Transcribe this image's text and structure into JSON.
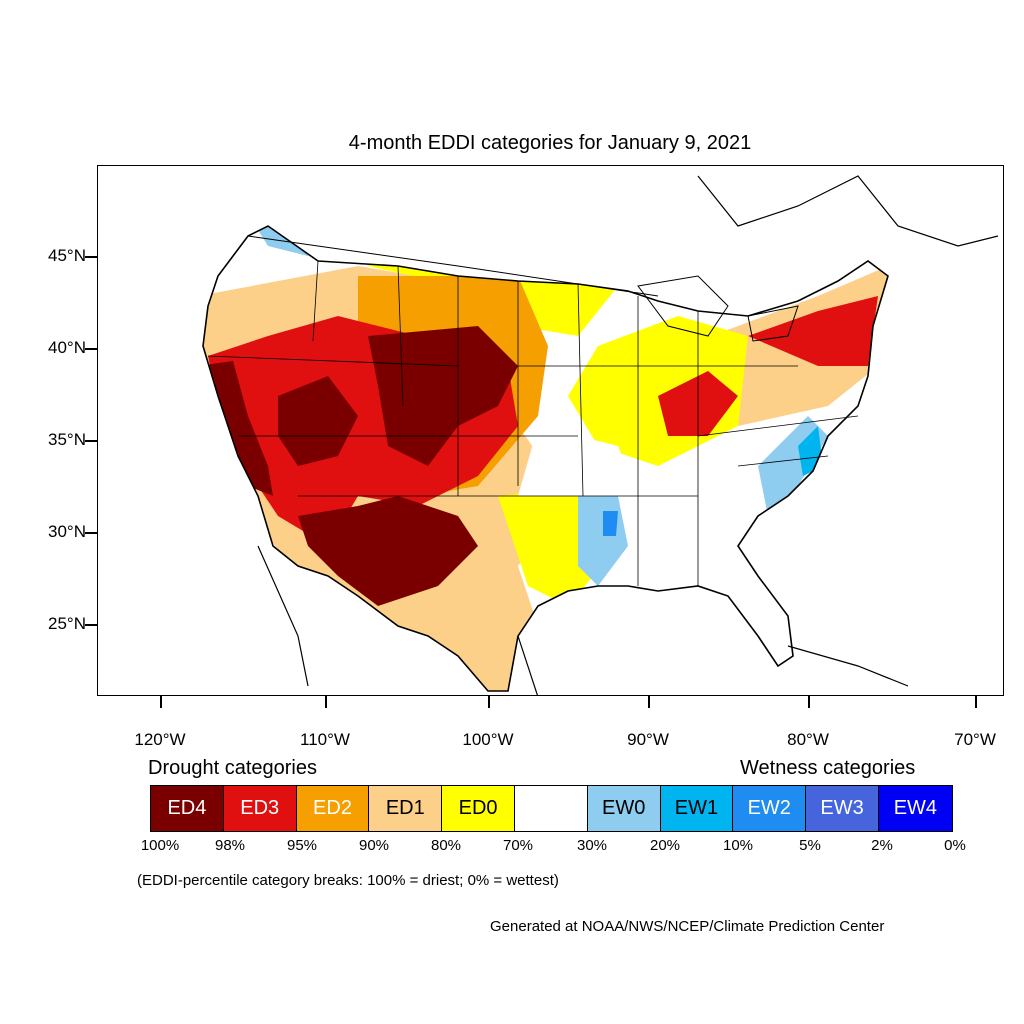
{
  "title": "4-month EDDI categories for January 9, 2021",
  "latitude_labels": [
    "45°N",
    "40°N",
    "35°N",
    "30°N",
    "25°N"
  ],
  "longitude_labels": [
    "120°W",
    "110°W",
    "100°W",
    "90°W",
    "80°W",
    "70°W"
  ],
  "legend": {
    "drought_heading": "Drought categories",
    "wetness_heading": "Wetness categories",
    "categories": [
      {
        "label": "ED4",
        "color": "#7a0000",
        "text_color": "#ffffff"
      },
      {
        "label": "ED3",
        "color": "#e01010",
        "text_color": "#ffffff"
      },
      {
        "label": "ED2",
        "color": "#f5a000",
        "text_color": "#ffffff"
      },
      {
        "label": "ED1",
        "color": "#fdd08a",
        "text_color": "#000000"
      },
      {
        "label": "ED0",
        "color": "#ffff00",
        "text_color": "#000000"
      },
      {
        "label": "",
        "color": "#ffffff",
        "text_color": "#000000"
      },
      {
        "label": "EW0",
        "color": "#8ecdf0",
        "text_color": "#000000"
      },
      {
        "label": "EW1",
        "color": "#00b4f0",
        "text_color": "#000000"
      },
      {
        "label": "EW2",
        "color": "#1e8cf0",
        "text_color": "#ffffff"
      },
      {
        "label": "EW3",
        "color": "#4664dc",
        "text_color": "#ffffff"
      },
      {
        "label": "EW4",
        "color": "#0000f5",
        "text_color": "#ffffff"
      }
    ],
    "breaks": [
      "100%",
      "98%",
      "95%",
      "90%",
      "80%",
      "70%",
      "30%",
      "20%",
      "10%",
      "5%",
      "2%",
      "0%"
    ],
    "note": "(EDDI-percentile category breaks: 100% = driest; 0% = wettest)"
  },
  "credit": "Generated at NOAA/NWS/NCEP/Climate Prediction Center"
}
